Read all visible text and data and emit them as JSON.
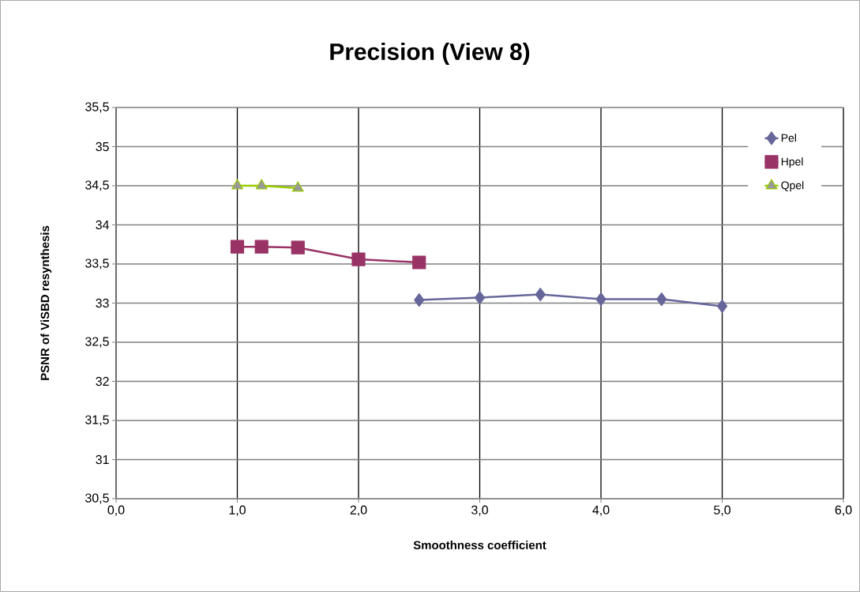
{
  "chart_data": {
    "type": "line",
    "title": "Precision (View 8)",
    "xlabel": "Smoothness coefficient",
    "ylabel": "PSNR of ViSBD resynthesis",
    "series": [
      {
        "name": "Pel",
        "color": "#66669a",
        "marker": "diamond",
        "x": [
          2.5,
          3.0,
          3.5,
          4.0,
          4.5,
          5.0
        ],
        "values": [
          33.04,
          33.07,
          33.11,
          33.05,
          33.05,
          32.96
        ]
      },
      {
        "name": "Hpel",
        "color": "#993366",
        "marker": "square",
        "x": [
          1.0,
          1.2,
          1.5,
          2.0,
          2.5
        ],
        "values": [
          33.72,
          33.72,
          33.71,
          33.56,
          33.52
        ]
      },
      {
        "name": "Qpel",
        "color": "#99cc00",
        "marker": "triangle",
        "x": [
          1.0,
          1.2,
          1.5
        ],
        "values": [
          34.5,
          34.5,
          34.47
        ]
      }
    ],
    "xlim": [
      0,
      6
    ],
    "ylim": [
      30.5,
      35.5
    ],
    "xticks": [
      {
        "value": 0,
        "label": "0,0"
      },
      {
        "value": 1,
        "label": "1,0"
      },
      {
        "value": 2,
        "label": "2,0"
      },
      {
        "value": 3,
        "label": "3,0"
      },
      {
        "value": 4,
        "label": "4,0"
      },
      {
        "value": 5,
        "label": "5,0"
      },
      {
        "value": 6,
        "label": "6,0"
      }
    ],
    "yticks": [
      {
        "value": 30.5,
        "label": "30,5"
      },
      31,
      {
        "value": 31.5,
        "label": "31,5"
      },
      32,
      {
        "value": 32.5,
        "label": "32,5"
      },
      33,
      {
        "value": 33.5,
        "label": "33,5"
      },
      34,
      {
        "value": 34.5,
        "label": "34,5"
      },
      35,
      {
        "value": 35.5,
        "label": "35,5"
      }
    ],
    "grid": true,
    "legend": "top right"
  }
}
